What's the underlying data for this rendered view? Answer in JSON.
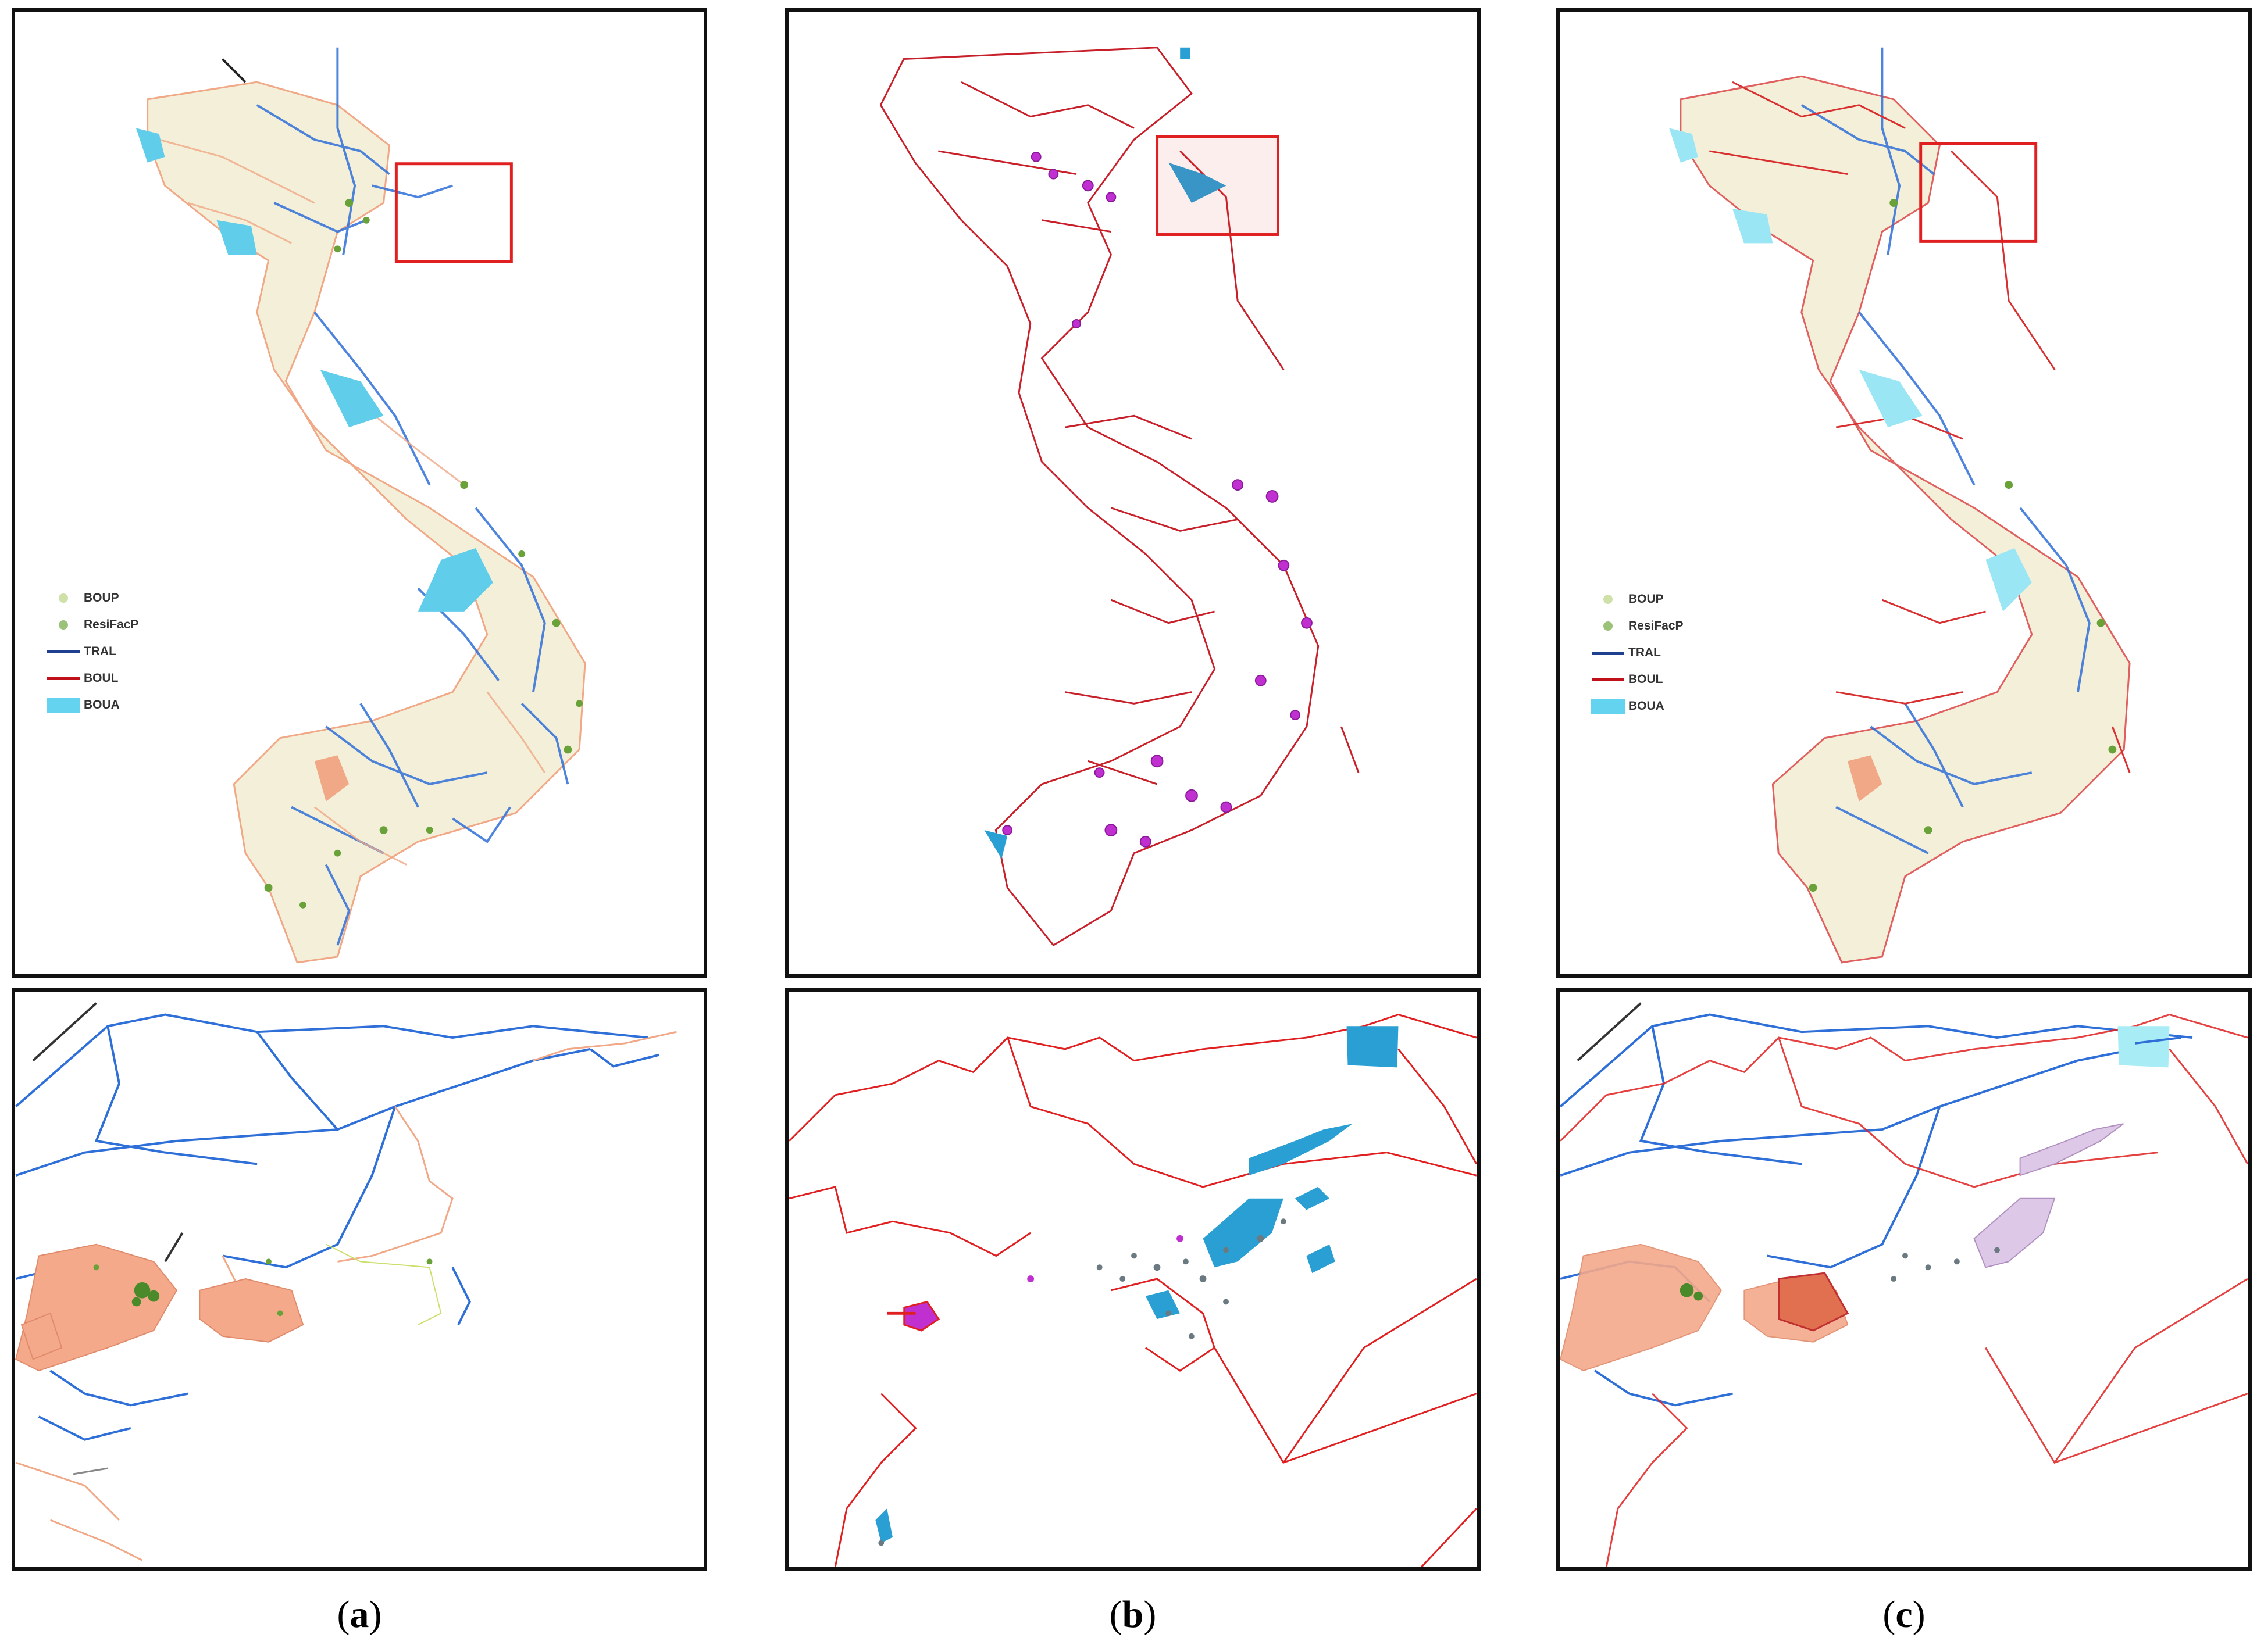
{
  "captions": {
    "a_letter": "a",
    "b_letter": "b",
    "c_letter": "c",
    "open": "(",
    "close": ")"
  },
  "legend": {
    "items": [
      {
        "label": "BOUP",
        "symbol": "dot",
        "color": "#cfe0a8"
      },
      {
        "label": "ResiFacP",
        "symbol": "dot",
        "color": "#9cc27a"
      },
      {
        "label": "TRAL",
        "symbol": "line",
        "color": "#1f3f8f"
      },
      {
        "label": "BOUL",
        "symbol": "line",
        "color": "#c0101a"
      },
      {
        "label": "BOUA",
        "symbol": "box",
        "color": "#63d3f0"
      }
    ]
  },
  "colors": {
    "road_blue": "#2f6fd8",
    "road_orange": "#f0a886",
    "boundary_red": "#e02020",
    "water_cyan": "#60cdea",
    "magenta": "#c030d0",
    "zoom_box": "#e02020",
    "beige": "#efe6c0"
  }
}
